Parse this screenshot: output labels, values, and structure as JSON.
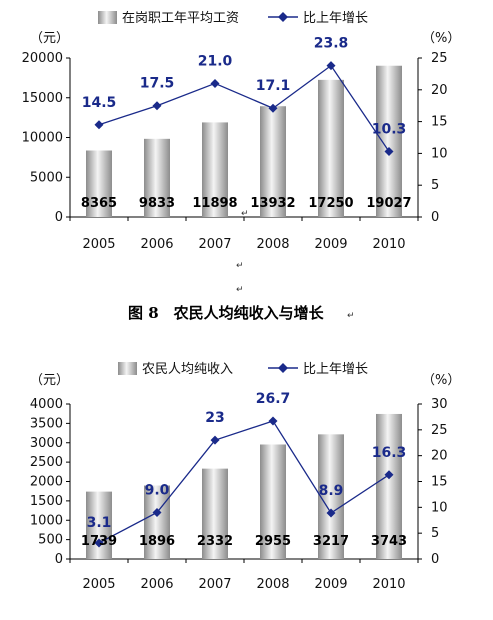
{
  "caption": "图 8　农民人均纯收入与增长",
  "chart_data": [
    {
      "type": "bar",
      "left_unit": "（元）",
      "right_unit": "（%）",
      "legend_bar": "在岗职工年平均工资",
      "legend_line": "比上年增长",
      "categories": [
        "2005",
        "2006",
        "2007",
        "2008",
        "2009",
        "2010"
      ],
      "series": [
        {
          "name": "在岗职工年平均工资",
          "axis": "left",
          "values": [
            8365,
            9833,
            11898,
            13932,
            17250,
            19027
          ]
        },
        {
          "name": "比上年增长",
          "axis": "right",
          "values": [
            14.5,
            17.5,
            21.0,
            17.1,
            23.8,
            10.3
          ]
        }
      ],
      "bar_labels": [
        "8365",
        "9833",
        "11898",
        "13932",
        "17250",
        "19027"
      ],
      "line_labels": [
        "14.5",
        "17.5",
        "21.0",
        "17.1",
        "23.8",
        "10.3"
      ],
      "ylim_left": [
        0,
        20000
      ],
      "yticks_left": [
        "0",
        "5000",
        "10000",
        "15000",
        "20000"
      ],
      "ylim_right": [
        0,
        25
      ],
      "yticks_right": [
        "0",
        "5",
        "10",
        "15",
        "20",
        "25"
      ],
      "grid": false,
      "legend_position": "top"
    },
    {
      "type": "bar",
      "left_unit": "（元）",
      "right_unit": "（%）",
      "legend_bar": "农民人均纯收入",
      "legend_line": "比上年增长",
      "categories": [
        "2005",
        "2006",
        "2007",
        "2008",
        "2009",
        "2010"
      ],
      "series": [
        {
          "name": "农民人均纯收入",
          "axis": "left",
          "values": [
            1739,
            1896,
            2332,
            2955,
            3217,
            3743
          ]
        },
        {
          "name": "比上年增长",
          "axis": "right",
          "values": [
            3.1,
            9.0,
            23,
            26.7,
            8.9,
            16.3
          ]
        }
      ],
      "bar_labels": [
        "1739",
        "1896",
        "2332",
        "2955",
        "3217",
        "3743"
      ],
      "line_labels": [
        "3.1",
        "9.0",
        "23",
        "26.7",
        "8.9",
        "16.3"
      ],
      "ylim_left": [
        0,
        4000
      ],
      "yticks_left": [
        "0",
        "500",
        "1000",
        "1500",
        "2000",
        "2500",
        "3000",
        "3500",
        "4000"
      ],
      "ylim_right": [
        0,
        30
      ],
      "yticks_right": [
        "0",
        "5",
        "10",
        "15",
        "20",
        "25",
        "30"
      ],
      "grid": false,
      "legend_position": "top"
    }
  ]
}
